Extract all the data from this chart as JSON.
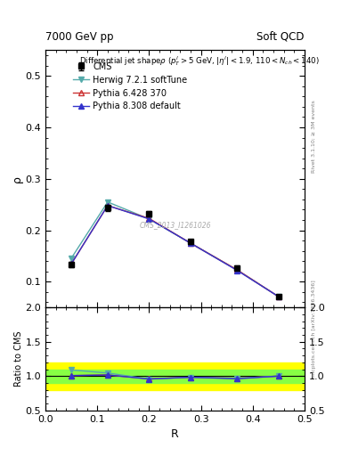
{
  "title_left": "7000 GeV pp",
  "title_right": "Soft QCD",
  "plot_title": "Differential jet shapeρ (p_{T}^{l}>5 GeV, |η^{l}|<1.9, 110<N_{ch}<140)",
  "xlabel": "R",
  "ylabel_main": "ρ",
  "ylabel_ratio": "Ratio to CMS",
  "right_label_main": "Rivet 3.1.10; ≥ 3M events",
  "right_label_ratio": "mcplots.cern.ch [arXiv:1306.3436]",
  "watermark": "CMS_2013_I1261026",
  "x": [
    0.05,
    0.12,
    0.2,
    0.28,
    0.37,
    0.45
  ],
  "cms_y": [
    0.134,
    0.244,
    0.232,
    0.178,
    0.127,
    0.071
  ],
  "cms_yerr": [
    0.005,
    0.006,
    0.005,
    0.004,
    0.004,
    0.003
  ],
  "herwig_y": [
    0.146,
    0.255,
    0.222,
    0.175,
    0.123,
    0.071
  ],
  "pythia6_y": [
    0.135,
    0.248,
    0.223,
    0.175,
    0.123,
    0.071
  ],
  "pythia8_y": [
    0.135,
    0.248,
    0.222,
    0.175,
    0.122,
    0.071
  ],
  "cms_color": "black",
  "herwig_color": "#55AAAA",
  "pythia6_color": "#CC3333",
  "pythia8_color": "#3333CC",
  "ylim_main": [
    0.05,
    0.55
  ],
  "ylim_ratio": [
    0.5,
    2.0
  ],
  "yticks_main": [
    0.1,
    0.2,
    0.3,
    0.4,
    0.5
  ],
  "yticks_ratio": [
    0.5,
    1.0,
    1.5,
    2.0
  ],
  "band_yellow_low": 0.8,
  "band_yellow_high": 1.2,
  "band_green_low": 0.9,
  "band_green_high": 1.1,
  "xlim": [
    0.0,
    0.5
  ]
}
